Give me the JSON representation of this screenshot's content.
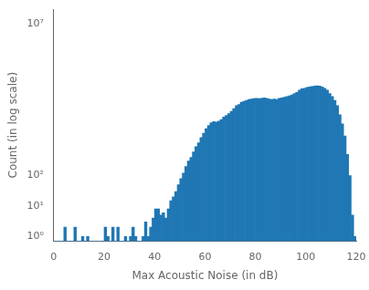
{
  "chart_data": {
    "type": "histogram",
    "xlabel": "Max Acoustic Noise (in dB)",
    "ylabel": "Count (in log scale)",
    "color": "#1f77b4",
    "log": "y",
    "grid": false,
    "xlim": [
      0,
      120
    ],
    "ylim": [
      0.7,
      30000000.0
    ],
    "xticks": [
      0,
      20,
      40,
      60,
      80,
      100,
      120
    ],
    "yticks": [
      {
        "value": 1,
        "label": "10⁰"
      },
      {
        "value": 10,
        "label": "10¹"
      },
      {
        "value": 100,
        "label": "10²"
      },
      {
        "value": 10000000,
        "label": "10⁷"
      }
    ],
    "bins": [
      0,
      1,
      2,
      3,
      4,
      5,
      6,
      7,
      8,
      9,
      10,
      11,
      12,
      13,
      14,
      15,
      16,
      17,
      18,
      19,
      20,
      21,
      22,
      23,
      24,
      25,
      26,
      27,
      28,
      29,
      30,
      31,
      32,
      33,
      34,
      35,
      36,
      37,
      38,
      39,
      40,
      41,
      42,
      43,
      44,
      45,
      46,
      47,
      48,
      49,
      50,
      51,
      52,
      53,
      54,
      55,
      56,
      57,
      58,
      59,
      60,
      61,
      62,
      63,
      64,
      65,
      66,
      67,
      68,
      69,
      70,
      71,
      72,
      73,
      74,
      75,
      76,
      77,
      78,
      79,
      80,
      81,
      82,
      83,
      84,
      85,
      86,
      87,
      88,
      89,
      90,
      91,
      92,
      93,
      94,
      95,
      96,
      97,
      98,
      99,
      100,
      101,
      102,
      103,
      104,
      105,
      106,
      107,
      108,
      109,
      110,
      111,
      112,
      113,
      114,
      115,
      116,
      117,
      118,
      119,
      120
    ],
    "counts": [
      0,
      0,
      0,
      0,
      2,
      0,
      0,
      0,
      2,
      0,
      0,
      1,
      0,
      1,
      0,
      0,
      0,
      0,
      0,
      0,
      2,
      1,
      0,
      2,
      0,
      2,
      0,
      0,
      1,
      0,
      1,
      2,
      1,
      0,
      0,
      1,
      3,
      1,
      2,
      4,
      8,
      8,
      5,
      6,
      4,
      8,
      15,
      20,
      30,
      50,
      80,
      120,
      200,
      300,
      400,
      600,
      900,
      1200,
      1800,
      2500,
      3500,
      4500,
      5500,
      6000,
      5800,
      6200,
      7000,
      8500,
      9500,
      11000,
      13000,
      16000,
      20000,
      22000,
      26000,
      28000,
      30000,
      32000,
      33000,
      34000,
      35000,
      34000,
      35000,
      36000,
      35000,
      33000,
      32000,
      33000,
      32000,
      35000,
      36000,
      38000,
      40000,
      42000,
      45000,
      50000,
      55000,
      65000,
      72000,
      75000,
      80000,
      82000,
      85000,
      88000,
      90000,
      88000,
      82000,
      75000,
      65000,
      50000,
      40000,
      30000,
      20000,
      10000,
      5000,
      2000,
      500,
      100,
      5,
      1
    ]
  }
}
